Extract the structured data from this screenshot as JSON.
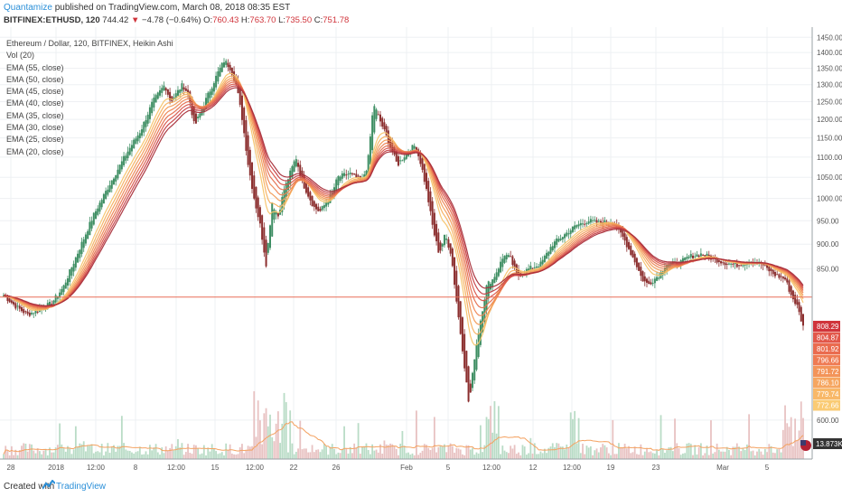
{
  "header": {
    "author": "Quantamize",
    "published": "published on TradingView.com, March 08, 2018 08:35 EST",
    "symbol": "BITFINEX:ETHUSD, 120",
    "last": "744.42",
    "arrow": "▼",
    "change": "−4.78 (−0.64%)",
    "ohlc": {
      "o": "760.43",
      "h": "763.70",
      "l": "735.50",
      "c": "751.78"
    }
  },
  "legend": {
    "title": "Ethereum / Dollar, 120, BITFINEX, Heikin Ashi",
    "items": [
      "Vol (20)",
      "EMA (55, close)",
      "EMA (50, close)",
      "EMA (45, close)",
      "EMA (40, close)",
      "EMA (35, close)",
      "EMA (30, close)",
      "EMA (25, close)",
      "EMA (20, close)"
    ]
  },
  "footer": {
    "created": "Created with",
    "brand": "TradingView"
  },
  "chart_data": {
    "type": "candlestick",
    "title": "Ethereum / Dollar, 120, BITFINEX, Heikin Ashi",
    "ylim": [
      560,
      1460
    ],
    "y_scale": "log",
    "y_ticks": [
      1450,
      1400,
      1350,
      1300,
      1250,
      1200,
      1150,
      1100,
      1050,
      1000,
      950,
      900,
      850,
      600
    ],
    "x_tick_labels": [
      "28",
      "2018",
      "12:00",
      "8",
      "12:00",
      "15",
      "12:00",
      "22",
      "26",
      "Feb",
      "5",
      "12:00",
      "12",
      "12:00",
      "19",
      "23",
      "Mar",
      "5"
    ],
    "price_anchors": [
      {
        "t": 0,
        "p": 800
      },
      {
        "t": 2,
        "p": 780
      },
      {
        "t": 4,
        "p": 765
      },
      {
        "t": 6,
        "p": 775
      },
      {
        "t": 8,
        "p": 785
      },
      {
        "t": 10,
        "p": 815
      },
      {
        "t": 12,
        "p": 870
      },
      {
        "t": 15,
        "p": 960
      },
      {
        "t": 18,
        "p": 1040
      },
      {
        "t": 21,
        "p": 1120
      },
      {
        "t": 23,
        "p": 1170
      },
      {
        "t": 25,
        "p": 1250
      },
      {
        "t": 27,
        "p": 1300
      },
      {
        "t": 28,
        "p": 1250
      },
      {
        "t": 30,
        "p": 1300
      },
      {
        "t": 31,
        "p": 1270
      },
      {
        "t": 32,
        "p": 1180
      },
      {
        "t": 34,
        "p": 1260
      },
      {
        "t": 36,
        "p": 1340
      },
      {
        "t": 37,
        "p": 1375
      },
      {
        "t": 38,
        "p": 1350
      },
      {
        "t": 39,
        "p": 1300
      },
      {
        "t": 40,
        "p": 1200
      },
      {
        "t": 41,
        "p": 1080
      },
      {
        "t": 42,
        "p": 1000
      },
      {
        "t": 43,
        "p": 940
      },
      {
        "t": 44,
        "p": 860
      },
      {
        "t": 45,
        "p": 990
      },
      {
        "t": 46,
        "p": 960
      },
      {
        "t": 47,
        "p": 1020
      },
      {
        "t": 48,
        "p": 1060
      },
      {
        "t": 49,
        "p": 1100
      },
      {
        "t": 50,
        "p": 1040
      },
      {
        "t": 52,
        "p": 980
      },
      {
        "t": 53,
        "p": 970
      },
      {
        "t": 55,
        "p": 1010
      },
      {
        "t": 56,
        "p": 1050
      },
      {
        "t": 58,
        "p": 1060
      },
      {
        "t": 60,
        "p": 1040
      },
      {
        "t": 61,
        "p": 1080
      },
      {
        "t": 62,
        "p": 1245
      },
      {
        "t": 63,
        "p": 1200
      },
      {
        "t": 64,
        "p": 1160
      },
      {
        "t": 66,
        "p": 1080
      },
      {
        "t": 68,
        "p": 1120
      },
      {
        "t": 69,
        "p": 1130
      },
      {
        "t": 70,
        "p": 1080
      },
      {
        "t": 71,
        "p": 1010
      },
      {
        "t": 72,
        "p": 930
      },
      {
        "t": 73,
        "p": 880
      },
      {
        "t": 74,
        "p": 920
      },
      {
        "t": 75,
        "p": 880
      },
      {
        "t": 76,
        "p": 780
      },
      {
        "t": 77,
        "p": 700
      },
      {
        "t": 78,
        "p": 620
      },
      {
        "t": 79,
        "p": 700
      },
      {
        "t": 80,
        "p": 760
      },
      {
        "t": 81,
        "p": 820
      },
      {
        "t": 82,
        "p": 830
      },
      {
        "t": 84,
        "p": 880
      },
      {
        "t": 85,
        "p": 870
      },
      {
        "t": 86,
        "p": 835
      },
      {
        "t": 88,
        "p": 850
      },
      {
        "t": 90,
        "p": 860
      },
      {
        "t": 92,
        "p": 900
      },
      {
        "t": 94,
        "p": 920
      },
      {
        "t": 96,
        "p": 940
      },
      {
        "t": 98,
        "p": 950
      },
      {
        "t": 100,
        "p": 945
      },
      {
        "t": 102,
        "p": 950
      },
      {
        "t": 104,
        "p": 910
      },
      {
        "t": 106,
        "p": 860
      },
      {
        "t": 107,
        "p": 830
      },
      {
        "t": 108,
        "p": 820
      },
      {
        "t": 110,
        "p": 840
      },
      {
        "t": 111,
        "p": 860
      },
      {
        "t": 113,
        "p": 860
      },
      {
        "t": 115,
        "p": 875
      },
      {
        "t": 117,
        "p": 880
      },
      {
        "t": 119,
        "p": 870
      },
      {
        "t": 121,
        "p": 862
      },
      {
        "t": 123,
        "p": 858
      },
      {
        "t": 125,
        "p": 865
      },
      {
        "t": 127,
        "p": 860
      },
      {
        "t": 129,
        "p": 840
      },
      {
        "t": 131,
        "p": 830
      },
      {
        "t": 132,
        "p": 800
      },
      {
        "t": 133,
        "p": 780
      },
      {
        "t": 134,
        "p": 744
      }
    ],
    "ema_periods": [
      20,
      25,
      30,
      35,
      40,
      45,
      50,
      55
    ],
    "price_line": 796.66,
    "price_labels": [
      {
        "value": "808.29",
        "color": "#d0343b"
      },
      {
        "value": "804.87",
        "color": "#e2574a"
      },
      {
        "value": "801.92",
        "color": "#ea6b4f"
      },
      {
        "value": "796.66",
        "color": "#ef7b53"
      },
      {
        "value": "791.72",
        "color": "#f39459"
      },
      {
        "value": "786.10",
        "color": "#f6a660"
      },
      {
        "value": "779.74",
        "color": "#f8b868"
      },
      {
        "value": "772.66",
        "color": "#facb74"
      }
    ],
    "volume_label": "13.873K",
    "colors": {
      "up": "#3e8e63",
      "down": "#8b2e2e",
      "grid": "#eef0f3",
      "price_line": "#e86f58"
    }
  }
}
